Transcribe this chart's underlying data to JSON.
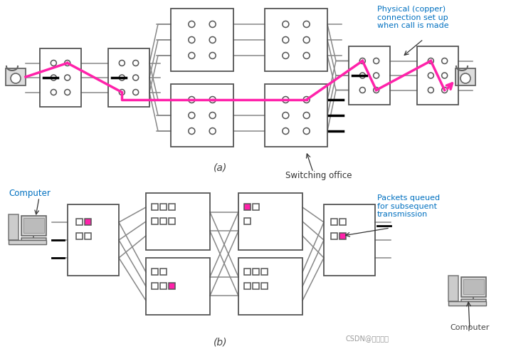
{
  "bg_color": "#ffffff",
  "magenta": "#FF22AA",
  "dark_gray": "#404040",
  "gray": "#888888",
  "box_edge": "#555555",
  "annotation_blue": "#0070C0",
  "annotation_orange": "#CC4400",
  "fig_width": 7.18,
  "fig_height": 4.97,
  "label_a": "(a)",
  "label_b": "(b)",
  "text_physical": "Physical (copper)\nconnection set up\nwhen call is made",
  "text_switching": "Switching office",
  "text_computer_left": "Computer",
  "text_computer_right": "Computer",
  "text_packets": "Packets queued\nfor subsequent\ntransmission",
  "text_csdn": "CSDN@大明梦卜"
}
